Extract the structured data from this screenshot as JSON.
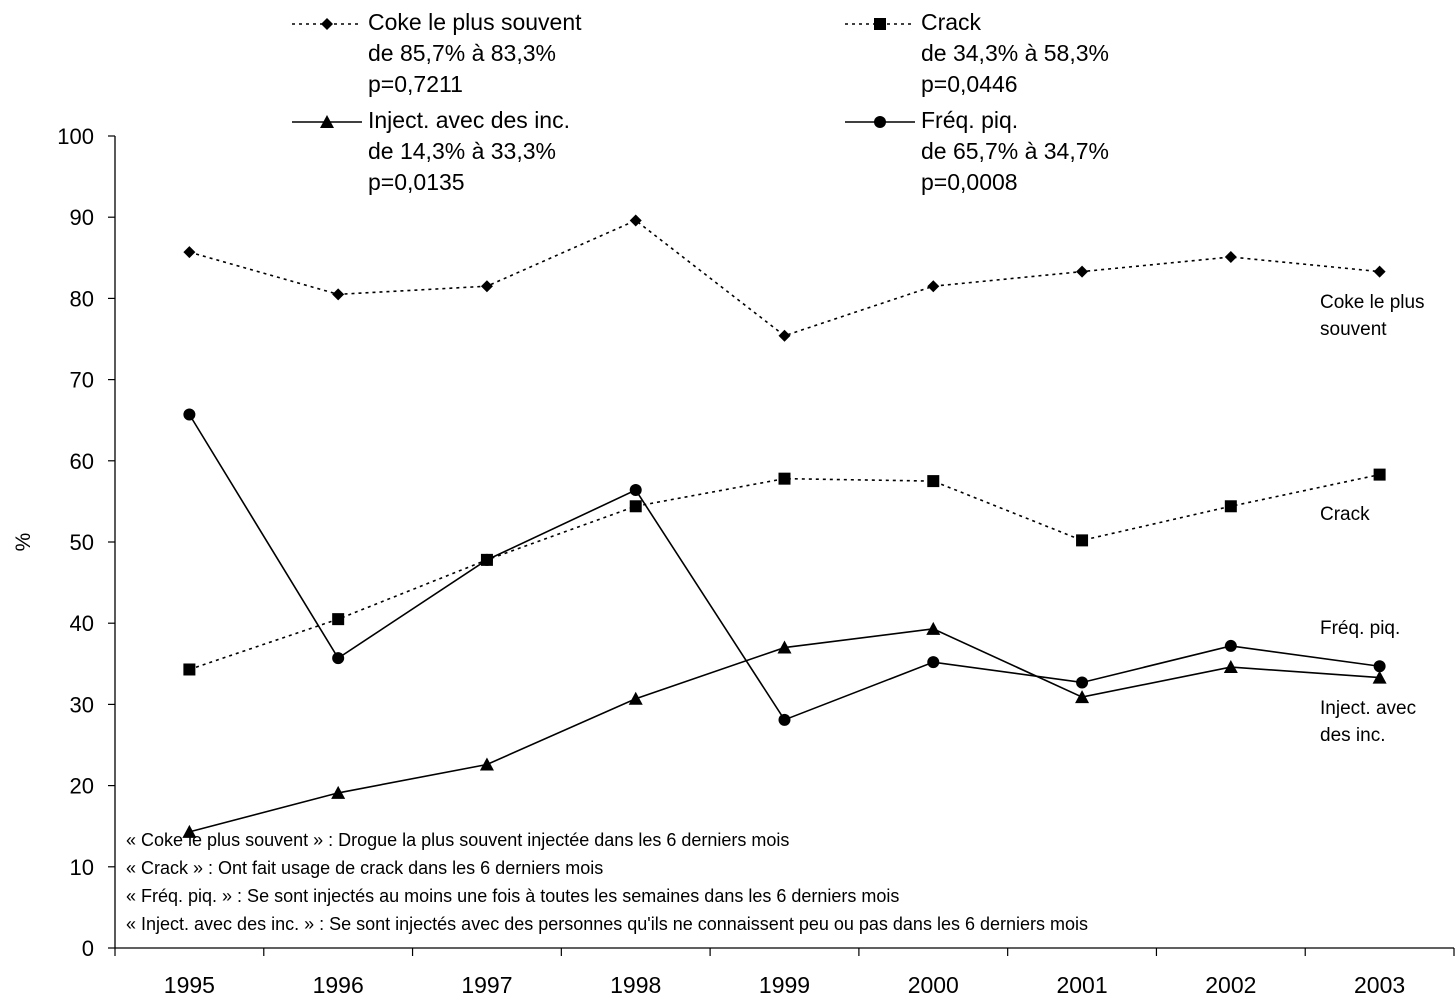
{
  "chart_data": {
    "type": "line",
    "xlabel": "",
    "ylabel": "%",
    "ylim": [
      0,
      100
    ],
    "yticks": [
      "0",
      "10",
      "20",
      "30",
      "40",
      "50",
      "60",
      "70",
      "80",
      "90",
      "100"
    ],
    "categories": [
      "1995",
      "1996",
      "1997",
      "1998",
      "1999",
      "2000",
      "2001",
      "2002",
      "2003"
    ],
    "grid": false,
    "legend_position": "top",
    "series": [
      {
        "key": "coke",
        "name": "Coke le plus souvent",
        "stats": [
          "de 85,7% à 83,3%",
          "p=0,7211"
        ],
        "end_label": [
          "Coke le plus",
          "souvent"
        ],
        "marker": "diamond",
        "dash": true,
        "values": [
          85.7,
          80.5,
          81.5,
          89.6,
          75.4,
          81.5,
          83.3,
          85.1,
          83.3
        ]
      },
      {
        "key": "crack",
        "name": "Crack",
        "stats": [
          "de 34,3% à 58,3%",
          "p=0,0446"
        ],
        "end_label": [
          "Crack"
        ],
        "marker": "square",
        "dash": true,
        "values": [
          34.3,
          40.5,
          47.8,
          54.4,
          57.8,
          57.5,
          50.2,
          54.4,
          58.3
        ]
      },
      {
        "key": "inject",
        "name": "Inject. avec des inc.",
        "stats": [
          "de 14,3% à 33,3%",
          "p=0,0135"
        ],
        "end_label": [
          "Inject. avec",
          "des inc."
        ],
        "marker": "triangle",
        "dash": false,
        "values": [
          14.3,
          19.1,
          22.6,
          30.7,
          37.0,
          39.3,
          30.9,
          34.6,
          33.3
        ]
      },
      {
        "key": "freq",
        "name": "Fréq. piq.",
        "stats": [
          "de 65,7% à 34,7%",
          "p=0,0008"
        ],
        "end_label": [
          "Fréq. piq."
        ],
        "marker": "circle",
        "dash": false,
        "values": [
          65.7,
          35.7,
          47.8,
          56.4,
          28.1,
          35.2,
          32.7,
          37.2,
          34.7
        ]
      }
    ],
    "footnotes": [
      "« Coke le plus souvent » : Drogue la plus souvent injectée dans les 6 derniers mois",
      "« Crack » : Ont fait usage de crack dans les 6 derniers mois",
      "« Fréq. piq. » : Se sont injectés au moins une fois à toutes les semaines dans les 6 derniers mois",
      "« Inject. avec des inc. » : Se sont injectés avec des personnes qu'ils ne connaissent peu ou pas dans les 6 derniers mois"
    ]
  }
}
